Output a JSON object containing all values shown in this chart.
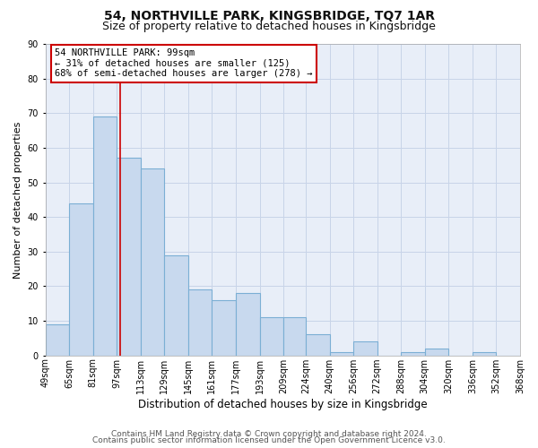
{
  "title": "54, NORTHVILLE PARK, KINGSBRIDGE, TQ7 1AR",
  "subtitle": "Size of property relative to detached houses in Kingsbridge",
  "xlabel": "Distribution of detached houses by size in Kingsbridge",
  "ylabel": "Number of detached properties",
  "bar_color": "#c8d9ee",
  "bar_edgecolor": "#7bafd4",
  "bar_linewidth": 0.8,
  "grid_color": "#c8d4e8",
  "ax_background_color": "#e8eef8",
  "fig_background_color": "#ffffff",
  "vline_x": 99,
  "vline_color": "#cc0000",
  "vline_linewidth": 1.2,
  "annotation_line1": "54 NORTHVILLE PARK: 99sqm",
  "annotation_line2": "← 31% of detached houses are smaller (125)",
  "annotation_line3": "68% of semi-detached houses are larger (278) →",
  "annotation_box_edgecolor": "#cc0000",
  "annotation_box_facecolor": "#ffffff",
  "annotation_fontsize": 7.5,
  "ylim": [
    0,
    90
  ],
  "yticks": [
    0,
    10,
    20,
    30,
    40,
    50,
    60,
    70,
    80,
    90
  ],
  "bin_edges": [
    49,
    65,
    81,
    97,
    113,
    129,
    145,
    161,
    177,
    193,
    209,
    224,
    240,
    256,
    272,
    288,
    304,
    320,
    336,
    352,
    368
  ],
  "bin_labels": [
    "49sqm",
    "65sqm",
    "81sqm",
    "97sqm",
    "113sqm",
    "129sqm",
    "145sqm",
    "161sqm",
    "177sqm",
    "193sqm",
    "209sqm",
    "224sqm",
    "240sqm",
    "256sqm",
    "272sqm",
    "288sqm",
    "304sqm",
    "320sqm",
    "336sqm",
    "352sqm",
    "368sqm"
  ],
  "counts": [
    9,
    44,
    69,
    57,
    54,
    29,
    19,
    16,
    18,
    11,
    11,
    6,
    1,
    4,
    0,
    1,
    2,
    0,
    1,
    0
  ],
  "footer_line1": "Contains HM Land Registry data © Crown copyright and database right 2024.",
  "footer_line2": "Contains public sector information licensed under the Open Government Licence v3.0.",
  "title_fontsize": 10,
  "subtitle_fontsize": 9,
  "xlabel_fontsize": 8.5,
  "ylabel_fontsize": 8,
  "tick_fontsize": 7,
  "footer_fontsize": 6.5
}
